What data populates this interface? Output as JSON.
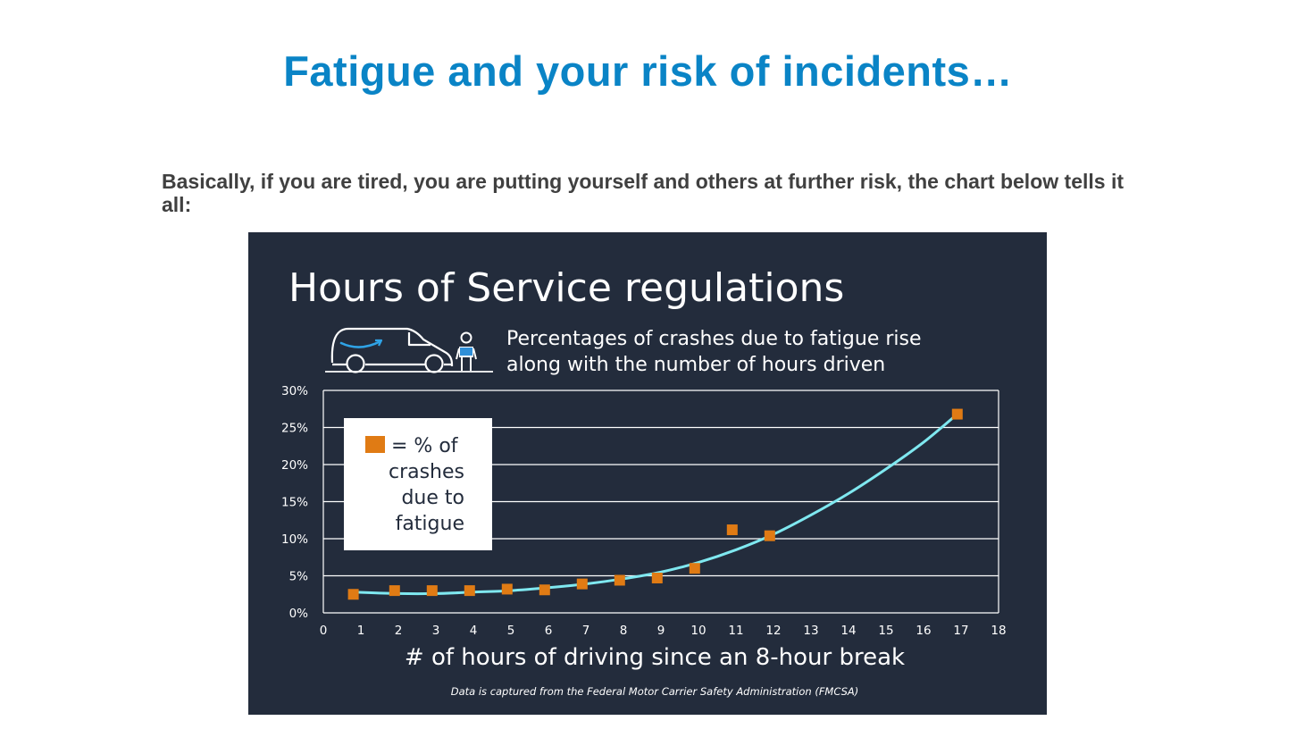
{
  "slide": {
    "title": "Fatigue and your risk of incidents…",
    "body": "Basically, if you are tired, you are putting yourself and others at further risk, the chart below tells it all:"
  },
  "infographic": {
    "subtitle_line1": "Percentages of crashes due to fatigue rise",
    "subtitle_line2": "along with the number of hours driven",
    "legend_line1": "= % of",
    "legend_line2": "crashes",
    "legend_line3": "due to",
    "legend_line4": "fatigue",
    "source": "Data is captured from the Federal Motor Carrier Safety Administration (FMCSA)"
  },
  "colors": {
    "panel_bg": "#232c3c",
    "marker": "#e07b14",
    "trend": "#7fe8f0",
    "title_blue": "#0a84c6"
  },
  "chart_data": {
    "type": "scatter",
    "title": "Hours of Service regulations",
    "xlabel": "# of hours of driving since an 8-hour break",
    "ylabel": "",
    "xlim": [
      0,
      18
    ],
    "ylim": [
      0,
      30
    ],
    "xticks": [
      "0",
      "1",
      "2",
      "3",
      "4",
      "5",
      "6",
      "7",
      "8",
      "9",
      "10",
      "11",
      "12",
      "13",
      "14",
      "15",
      "16",
      "17",
      "18"
    ],
    "yticks": [
      "0%",
      "5%",
      "10%",
      "15%",
      "20%",
      "25%",
      "30%"
    ],
    "grid": "horizontal",
    "legend_position": "top-left",
    "series": [
      {
        "name": "= % of crashes due to fatigue",
        "points": [
          {
            "x": 0.8,
            "y": 2.5
          },
          {
            "x": 1.9,
            "y": 3.0
          },
          {
            "x": 2.9,
            "y": 3.0
          },
          {
            "x": 3.9,
            "y": 3.0
          },
          {
            "x": 4.9,
            "y": 3.2
          },
          {
            "x": 5.9,
            "y": 3.1
          },
          {
            "x": 6.9,
            "y": 3.9
          },
          {
            "x": 7.9,
            "y": 4.4
          },
          {
            "x": 8.9,
            "y": 4.7
          },
          {
            "x": 9.9,
            "y": 6.0
          },
          {
            "x": 10.9,
            "y": 11.2
          },
          {
            "x": 11.9,
            "y": 10.4
          },
          {
            "x": 16.9,
            "y": 26.8
          }
        ]
      }
    ],
    "trendline": {
      "points": [
        {
          "x": 0.8,
          "y": 2.8
        },
        {
          "x": 2,
          "y": 2.6
        },
        {
          "x": 3,
          "y": 2.6
        },
        {
          "x": 4,
          "y": 2.8
        },
        {
          "x": 5,
          "y": 3.0
        },
        {
          "x": 6,
          "y": 3.4
        },
        {
          "x": 7,
          "y": 3.9
        },
        {
          "x": 8,
          "y": 4.6
        },
        {
          "x": 9,
          "y": 5.5
        },
        {
          "x": 10,
          "y": 6.8
        },
        {
          "x": 11,
          "y": 8.5
        },
        {
          "x": 12,
          "y": 10.6
        },
        {
          "x": 13,
          "y": 13.2
        },
        {
          "x": 14,
          "y": 16.1
        },
        {
          "x": 15,
          "y": 19.4
        },
        {
          "x": 16,
          "y": 23.0
        },
        {
          "x": 16.9,
          "y": 26.8
        }
      ]
    }
  }
}
